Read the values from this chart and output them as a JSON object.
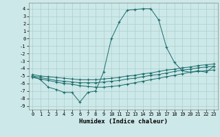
{
  "xlabel": "Humidex (Indice chaleur)",
  "bg_color": "#cde8e8",
  "grid_color": "#aacfcf",
  "line_color": "#1a6b6b",
  "xlim": [
    -0.5,
    23.5
  ],
  "ylim": [
    -9.5,
    4.8
  ],
  "xticks": [
    0,
    1,
    2,
    3,
    4,
    5,
    6,
    7,
    8,
    9,
    10,
    11,
    12,
    13,
    14,
    15,
    16,
    17,
    18,
    19,
    20,
    21,
    22,
    23
  ],
  "yticks": [
    4,
    3,
    2,
    1,
    0,
    -1,
    -2,
    -3,
    -4,
    -5,
    -6,
    -7,
    -8,
    -9
  ],
  "series1_x": [
    0,
    1,
    2,
    3,
    4,
    5,
    6,
    7,
    8,
    9,
    10,
    11,
    12,
    13,
    14,
    15,
    16,
    17,
    18,
    19,
    20,
    21,
    22,
    23
  ],
  "series1_y": [
    -5.0,
    -5.5,
    -6.5,
    -6.8,
    -7.2,
    -7.2,
    -8.5,
    -7.2,
    -7.0,
    -4.5,
    0.0,
    2.2,
    3.8,
    3.9,
    4.0,
    4.0,
    2.5,
    -1.2,
    -3.2,
    -4.3,
    -4.5,
    -4.3,
    -4.5,
    -3.7
  ],
  "series2_x": [
    0,
    1,
    2,
    3,
    4,
    5,
    6,
    7,
    8,
    9,
    10,
    11,
    12,
    13,
    14,
    15,
    16,
    17,
    18,
    19,
    20,
    21,
    22,
    23
  ],
  "series2_y": [
    -5.2,
    -5.4,
    -5.6,
    -5.8,
    -6.0,
    -6.1,
    -6.3,
    -6.4,
    -6.5,
    -6.5,
    -6.4,
    -6.3,
    -6.1,
    -5.9,
    -5.7,
    -5.5,
    -5.3,
    -5.1,
    -4.9,
    -4.7,
    -4.5,
    -4.4,
    -4.3,
    -4.2
  ],
  "series3_x": [
    0,
    1,
    2,
    3,
    4,
    5,
    6,
    7,
    8,
    9,
    10,
    11,
    12,
    13,
    14,
    15,
    16,
    17,
    18,
    19,
    20,
    21,
    22,
    23
  ],
  "series3_y": [
    -5.0,
    -5.2,
    -5.4,
    -5.6,
    -5.7,
    -5.8,
    -5.9,
    -5.9,
    -5.9,
    -5.8,
    -5.7,
    -5.6,
    -5.4,
    -5.3,
    -5.1,
    -4.9,
    -4.8,
    -4.6,
    -4.4,
    -4.2,
    -4.1,
    -3.9,
    -3.8,
    -3.7
  ],
  "series4_x": [
    0,
    1,
    2,
    3,
    4,
    5,
    6,
    7,
    8,
    9,
    10,
    11,
    12,
    13,
    14,
    15,
    16,
    17,
    18,
    19,
    20,
    21,
    22,
    23
  ],
  "series4_y": [
    -4.8,
    -5.0,
    -5.1,
    -5.2,
    -5.3,
    -5.4,
    -5.5,
    -5.5,
    -5.5,
    -5.4,
    -5.3,
    -5.2,
    -5.0,
    -4.9,
    -4.7,
    -4.6,
    -4.4,
    -4.2,
    -4.1,
    -3.9,
    -3.8,
    -3.6,
    -3.5,
    -3.4
  ],
  "xlabel_fontsize": 6.5,
  "tick_fontsize": 5.0
}
